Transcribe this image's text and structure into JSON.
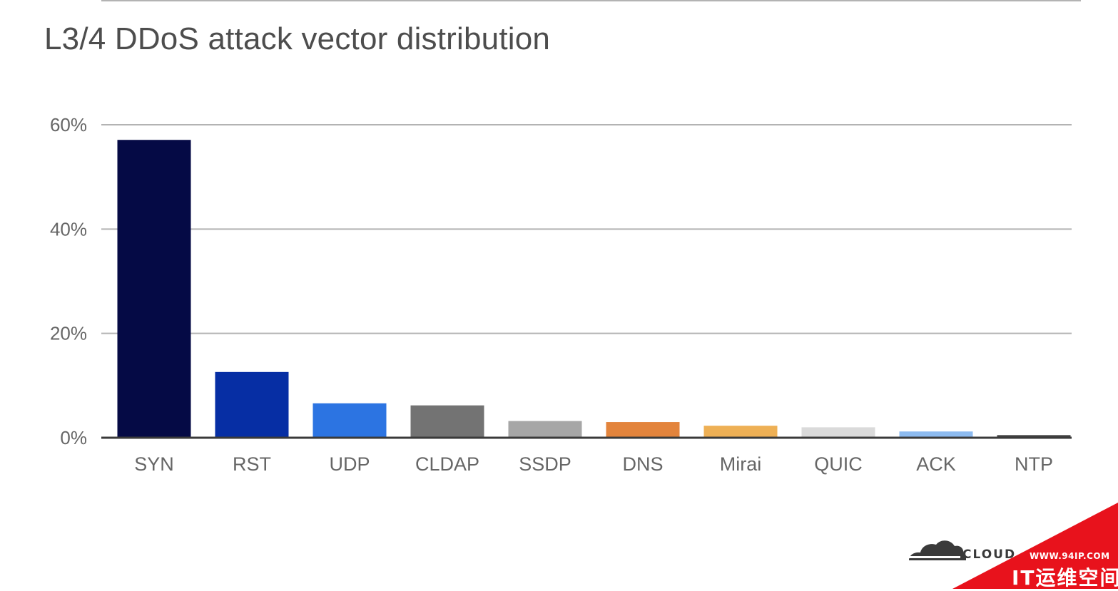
{
  "chart_data": {
    "type": "bar",
    "title": "L3/4 DDoS attack vector distribution",
    "xlabel": "",
    "ylabel": "",
    "ylim": [
      0,
      60
    ],
    "yticks": [
      "0%",
      "20%",
      "40%",
      "60%"
    ],
    "ytick_values": [
      0,
      20,
      40,
      60
    ],
    "grid": true,
    "legend": "none",
    "categories": [
      "SYN",
      "RST",
      "UDP",
      "CLDAP",
      "SSDP",
      "DNS",
      "Mirai",
      "QUIC",
      "ACK",
      "NTP"
    ],
    "values": [
      57.1,
      12.6,
      6.6,
      6.2,
      3.2,
      3.0,
      2.3,
      2.0,
      1.2,
      0.5
    ],
    "colors": [
      "#050a45",
      "#062ea4",
      "#2c74e2",
      "#737373",
      "#a6a6a6",
      "#e3843c",
      "#eeb055",
      "#dadada",
      "#8dbbf0",
      "#414141"
    ]
  },
  "watermark": {
    "brand": "CLOUDFLARE",
    "brand_visible": "CLOUD",
    "site_url": "WWW.94IP.COM",
    "site_name": "IT运维空间"
  }
}
